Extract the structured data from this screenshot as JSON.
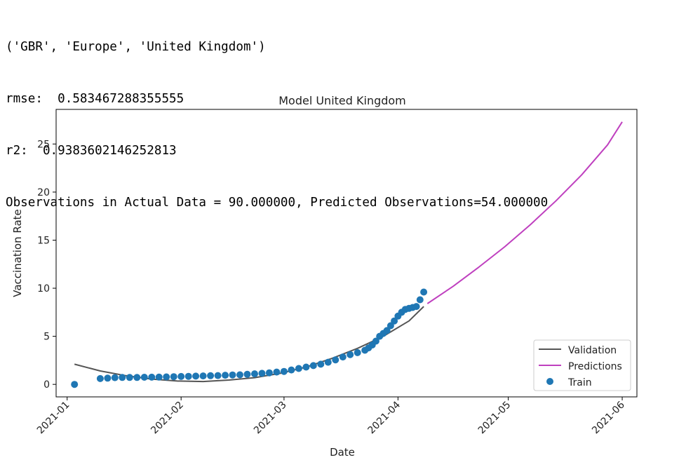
{
  "console": {
    "lines": [
      "('GBR', 'Europe', 'United Kingdom')",
      "rmse:  0.583467288355555",
      "r2:  0.9383602146252813",
      "Observations in Actual Data = 90.000000, Predicted Observations=54.000000"
    ]
  },
  "colors": {
    "train": "#1f77b4",
    "validation": "#555555",
    "predictions": "#bf40bf"
  },
  "chart_data": {
    "type": "line",
    "title": "Model United Kingdom",
    "xlabel": "Date",
    "ylabel": "Vaccination Rate",
    "xlim": [
      "2020-12-29",
      "2021-06-05"
    ],
    "ylim": [
      -1.3,
      28.6
    ],
    "x_ticks": [
      "2021-01",
      "2021-02",
      "2021-03",
      "2021-04",
      "2021-05",
      "2021-06"
    ],
    "y_ticks": [
      0,
      5,
      10,
      15,
      20,
      25
    ],
    "legend_position": "lower right",
    "series": [
      {
        "name": "Validation",
        "style": "line",
        "x": [
          "2021-01-03",
          "2021-01-10",
          "2021-01-17",
          "2021-01-24",
          "2021-01-31",
          "2021-02-07",
          "2021-02-14",
          "2021-02-21",
          "2021-02-28",
          "2021-03-07",
          "2021-03-14",
          "2021-03-21",
          "2021-03-28",
          "2021-04-04",
          "2021-04-08"
        ],
        "values": [
          2.1,
          1.4,
          0.9,
          0.55,
          0.35,
          0.3,
          0.45,
          0.7,
          1.15,
          1.8,
          2.7,
          3.75,
          5.0,
          6.6,
          8.1
        ]
      },
      {
        "name": "Predictions",
        "style": "line",
        "x": [
          "2021-04-09",
          "2021-04-16",
          "2021-04-23",
          "2021-04-30",
          "2021-05-07",
          "2021-05-14",
          "2021-05-21",
          "2021-05-28",
          "2021-06-01"
        ],
        "values": [
          8.4,
          10.2,
          12.2,
          14.3,
          16.6,
          19.1,
          21.8,
          24.9,
          27.3
        ]
      },
      {
        "name": "Train",
        "style": "scatter",
        "x": [
          "2021-01-03",
          "2021-01-10",
          "2021-01-12",
          "2021-01-14",
          "2021-01-16",
          "2021-01-18",
          "2021-01-20",
          "2021-01-22",
          "2021-01-24",
          "2021-01-26",
          "2021-01-28",
          "2021-01-30",
          "2021-02-01",
          "2021-02-03",
          "2021-02-05",
          "2021-02-07",
          "2021-02-09",
          "2021-02-11",
          "2021-02-13",
          "2021-02-15",
          "2021-02-17",
          "2021-02-19",
          "2021-02-21",
          "2021-02-23",
          "2021-02-25",
          "2021-02-27",
          "2021-03-01",
          "2021-03-03",
          "2021-03-05",
          "2021-03-07",
          "2021-03-09",
          "2021-03-11",
          "2021-03-13",
          "2021-03-15",
          "2021-03-17",
          "2021-03-19",
          "2021-03-21",
          "2021-03-23",
          "2021-03-24",
          "2021-03-25",
          "2021-03-26",
          "2021-03-27",
          "2021-03-28",
          "2021-03-29",
          "2021-03-30",
          "2021-03-31",
          "2021-04-01",
          "2021-04-02",
          "2021-04-03",
          "2021-04-04",
          "2021-04-05",
          "2021-04-06",
          "2021-04-07",
          "2021-04-08"
        ],
        "values": [
          0.0,
          0.6,
          0.65,
          0.7,
          0.72,
          0.72,
          0.72,
          0.74,
          0.75,
          0.76,
          0.78,
          0.8,
          0.82,
          0.84,
          0.86,
          0.88,
          0.9,
          0.92,
          0.95,
          0.98,
          1.0,
          1.05,
          1.1,
          1.15,
          1.2,
          1.28,
          1.35,
          1.5,
          1.65,
          1.8,
          1.95,
          2.1,
          2.3,
          2.55,
          2.85,
          3.1,
          3.3,
          3.55,
          3.8,
          4.1,
          4.5,
          5.0,
          5.3,
          5.6,
          6.1,
          6.6,
          7.1,
          7.5,
          7.8,
          7.9,
          8.0,
          8.1,
          8.8,
          9.6
        ]
      }
    ]
  }
}
